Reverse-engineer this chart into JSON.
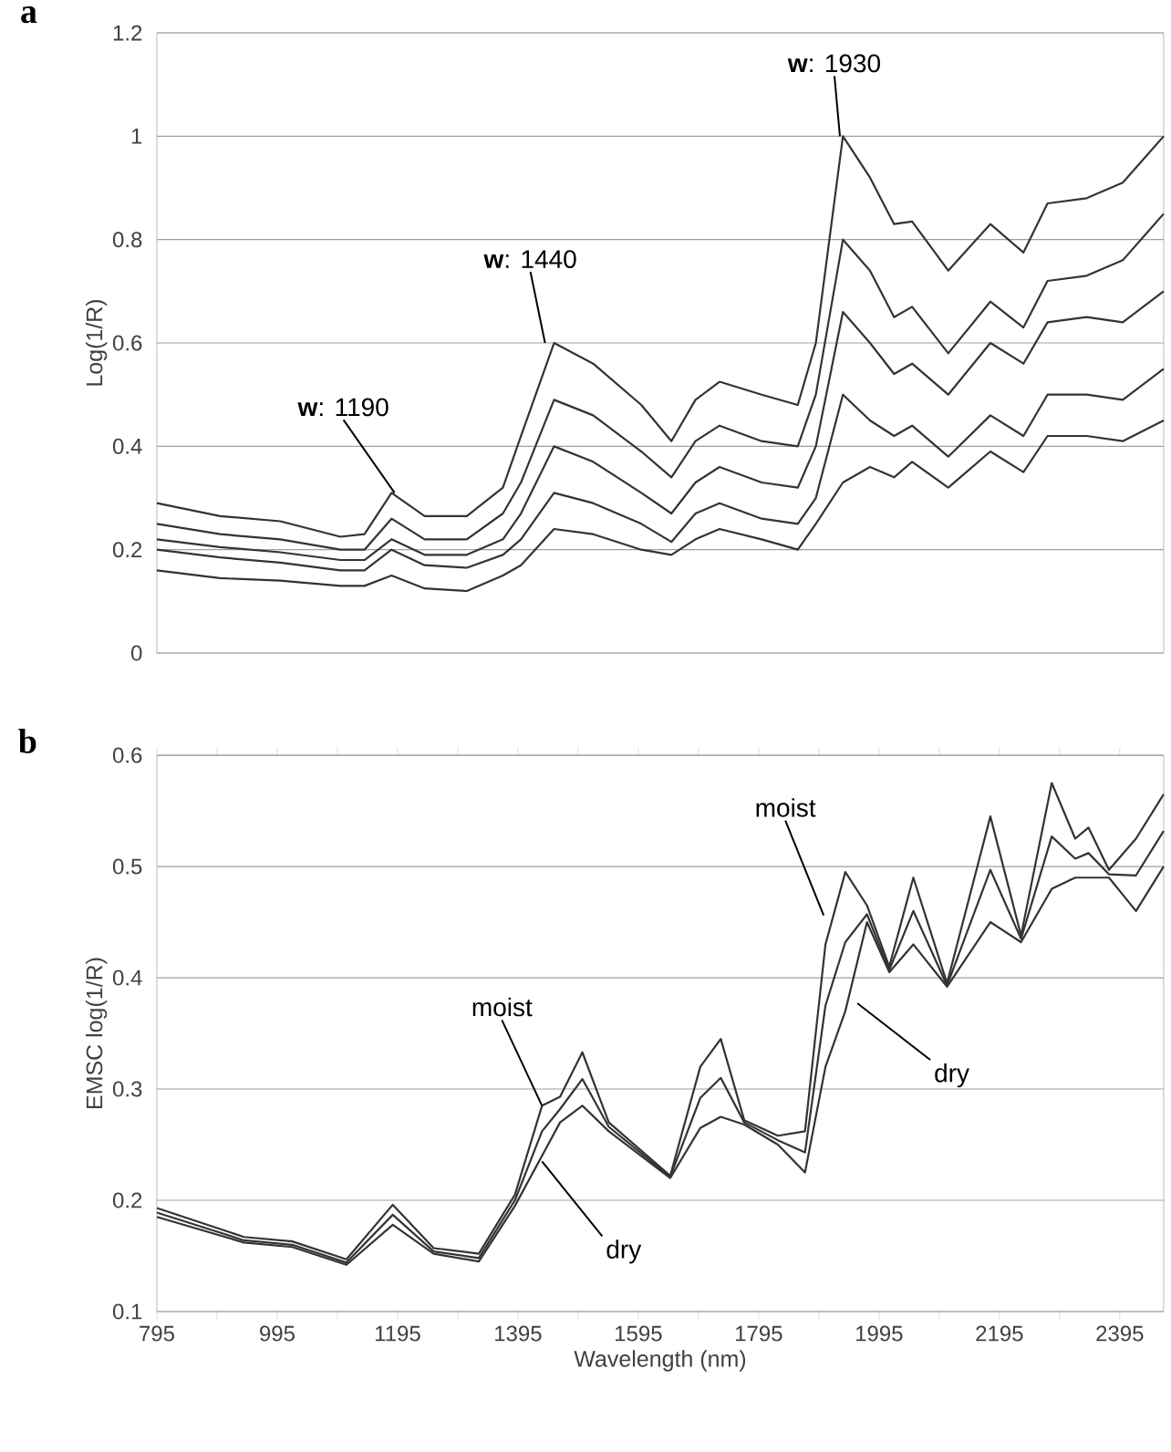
{
  "chart_data": [
    {
      "type": "line",
      "title": "a",
      "ylabel": "Log(1/R)",
      "xlim": [
        795,
        2468
      ],
      "ylim": [
        0,
        1.2
      ],
      "yticks": [
        0,
        0.2,
        0.4,
        0.6,
        0.8,
        1,
        1.2
      ],
      "grid": "y",
      "tick_labels": "y",
      "x": [
        795,
        900,
        1000,
        1100,
        1140,
        1185,
        1240,
        1310,
        1370,
        1400,
        1455,
        1520,
        1600,
        1650,
        1690,
        1730,
        1800,
        1860,
        1890,
        1935,
        1980,
        2020,
        2050,
        2110,
        2180,
        2235,
        2275,
        2340,
        2400,
        2468
      ],
      "series": [
        {
          "color": "#333333",
          "values": [
            0.29,
            0.265,
            0.255,
            0.225,
            0.23,
            0.31,
            0.265,
            0.265,
            0.32,
            0.42,
            0.6,
            0.56,
            0.48,
            0.41,
            0.49,
            0.525,
            0.5,
            0.48,
            0.6,
            1.0,
            0.92,
            0.83,
            0.835,
            0.74,
            0.83,
            0.775,
            0.87,
            0.88,
            0.91,
            1.0
          ]
        },
        {
          "color": "#333333",
          "values": [
            0.25,
            0.23,
            0.22,
            0.2,
            0.2,
            0.26,
            0.22,
            0.22,
            0.27,
            0.33,
            0.49,
            0.46,
            0.39,
            0.34,
            0.41,
            0.44,
            0.41,
            0.4,
            0.5,
            0.8,
            0.74,
            0.65,
            0.67,
            0.58,
            0.68,
            0.63,
            0.72,
            0.73,
            0.76,
            0.85
          ]
        },
        {
          "color": "#333333",
          "values": [
            0.22,
            0.205,
            0.195,
            0.18,
            0.18,
            0.22,
            0.19,
            0.19,
            0.22,
            0.27,
            0.4,
            0.37,
            0.31,
            0.27,
            0.33,
            0.36,
            0.33,
            0.32,
            0.4,
            0.66,
            0.6,
            0.54,
            0.56,
            0.5,
            0.6,
            0.56,
            0.64,
            0.65,
            0.64,
            0.7
          ]
        },
        {
          "color": "#333333",
          "values": [
            0.2,
            0.185,
            0.175,
            0.16,
            0.16,
            0.2,
            0.17,
            0.165,
            0.19,
            0.22,
            0.31,
            0.29,
            0.25,
            0.215,
            0.27,
            0.29,
            0.26,
            0.25,
            0.3,
            0.5,
            0.45,
            0.42,
            0.44,
            0.38,
            0.46,
            0.42,
            0.5,
            0.5,
            0.49,
            0.55
          ]
        },
        {
          "color": "#333333",
          "values": [
            0.16,
            0.145,
            0.14,
            0.13,
            0.13,
            0.15,
            0.125,
            0.12,
            0.15,
            0.17,
            0.24,
            0.23,
            0.2,
            0.19,
            0.22,
            0.24,
            0.22,
            0.2,
            0.25,
            0.33,
            0.36,
            0.34,
            0.37,
            0.32,
            0.39,
            0.35,
            0.42,
            0.42,
            0.41,
            0.45
          ]
        }
      ],
      "annotations": [
        {
          "text": "**w**: 1190",
          "x": 1190,
          "y": 0.31
        },
        {
          "text": "**w**: 1440",
          "x": 1440,
          "y": 0.6
        },
        {
          "text": "**w**: 1930",
          "x": 1930,
          "y": 1.0
        }
      ]
    },
    {
      "type": "line",
      "title": "b",
      "ylabel": "EMSC log(1/R)",
      "xlabel": "Wavelength (nm)",
      "xlim": [
        795,
        2468
      ],
      "ylim": [
        0.1,
        0.6
      ],
      "yticks": [
        0.1,
        0.2,
        0.3,
        0.4,
        0.5,
        0.6
      ],
      "grid": "y",
      "xticks": [
        795,
        {
          "value": 895,
          "label": null
        },
        995,
        {
          "value": 1095,
          "label": null
        },
        1195,
        {
          "value": 1295,
          "label": null
        },
        1395,
        {
          "value": 1495,
          "label": null
        },
        1595,
        {
          "value": 1695,
          "label": null
        },
        1795,
        {
          "value": 1895,
          "label": null
        },
        1995,
        {
          "value": 2095,
          "label": null
        },
        2195,
        {
          "value": 2295,
          "label": null
        },
        2395
      ],
      "x": [
        795,
        940,
        1020,
        1110,
        1187,
        1255,
        1330,
        1390,
        1435,
        1465,
        1502,
        1546,
        1648,
        1698,
        1732,
        1771,
        1827,
        1872,
        1906,
        1939,
        1975,
        2012,
        2052,
        2108,
        2180,
        2231,
        2282,
        2321,
        2343,
        2377,
        2422,
        2468
      ],
      "series": [
        {
          "color": "#333333",
          "values": [
            0.193,
            0.167,
            0.163,
            0.147,
            0.196,
            0.157,
            0.152,
            0.205,
            0.285,
            0.293,
            0.333,
            0.27,
            0.222,
            0.32,
            0.345,
            0.272,
            0.258,
            0.262,
            0.43,
            0.495,
            0.465,
            0.41,
            0.49,
            0.395,
            0.545,
            0.438,
            0.575,
            0.525,
            0.535,
            0.497,
            0.525,
            0.565
          ]
        },
        {
          "color": "#333333",
          "values": [
            0.189,
            0.164,
            0.16,
            0.144,
            0.187,
            0.154,
            0.148,
            0.2,
            0.262,
            0.282,
            0.309,
            0.266,
            0.221,
            0.292,
            0.31,
            0.27,
            0.254,
            0.243,
            0.375,
            0.432,
            0.457,
            0.407,
            0.46,
            0.393,
            0.497,
            0.435,
            0.527,
            0.507,
            0.512,
            0.493,
            0.492,
            0.532
          ]
        },
        {
          "color": "#333333",
          "values": [
            0.185,
            0.162,
            0.158,
            0.142,
            0.178,
            0.152,
            0.145,
            0.195,
            0.24,
            0.27,
            0.285,
            0.262,
            0.22,
            0.265,
            0.275,
            0.268,
            0.25,
            0.225,
            0.32,
            0.37,
            0.45,
            0.405,
            0.43,
            0.392,
            0.45,
            0.432,
            0.48,
            0.49,
            0.49,
            0.49,
            0.46,
            0.5
          ]
        }
      ],
      "annotations": [
        {
          "text": "moist",
          "x": 1435,
          "y": 0.285
        },
        {
          "text": "dry",
          "x": 1435,
          "y": 0.235
        },
        {
          "text": "moist",
          "x": 1903,
          "y": 0.456
        },
        {
          "text": "dry",
          "x": 1959,
          "y": 0.377
        }
      ]
    }
  ]
}
